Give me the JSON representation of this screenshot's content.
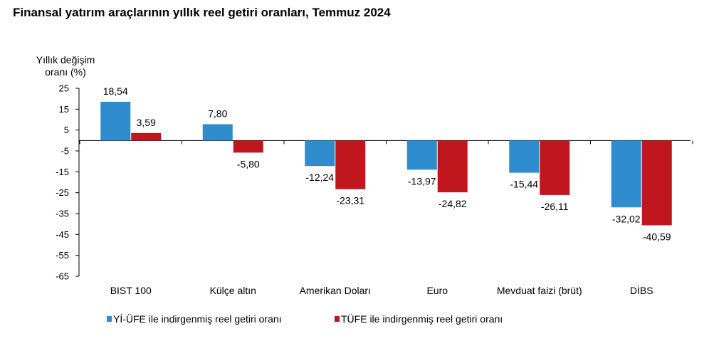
{
  "chart_data": {
    "type": "bar",
    "title": "Finansal yatırım araçlarının yıllık reel getiri oranları, Temmuz 2024",
    "ylabel_line1": "Yıllık değişim",
    "ylabel_line2": "oranı (%)",
    "xlabel": "",
    "ylim": [
      -65,
      25
    ],
    "yticks": [
      "25",
      "15",
      "5",
      "-5",
      "-15",
      "-25",
      "-35",
      "-45",
      "-55",
      "-65"
    ],
    "ytick_values": [
      25,
      15,
      5,
      -5,
      -15,
      -25,
      -35,
      -45,
      -55,
      -65
    ],
    "categories": [
      "BIST 100",
      "Külçe altın",
      "Amerikan Doları",
      "Euro",
      "Mevduat faizi (brüt)",
      "DİBS"
    ],
    "series": [
      {
        "name": "Yİ-ÜFE ile indirgenmiş reel getiri oranı",
        "color": "#2f8dcd",
        "values": [
          18.54,
          7.8,
          -12.24,
          -13.97,
          -15.44,
          -32.02
        ],
        "labels": [
          "18,54",
          "7,80",
          "-12,24",
          "-13,97",
          "-15,44",
          "-32,02"
        ]
      },
      {
        "name": "TÜFE ile indirgenmiş reel getiri oranı",
        "color": "#c0171e",
        "values": [
          3.59,
          -5.8,
          -23.31,
          -24.82,
          -26.11,
          -40.59
        ],
        "labels": [
          "3,59",
          "-5,80",
          "-23,31",
          "-24,82",
          "-26,11",
          "-40,59"
        ]
      }
    ],
    "grid": false,
    "legend_position": "bottom-left"
  }
}
